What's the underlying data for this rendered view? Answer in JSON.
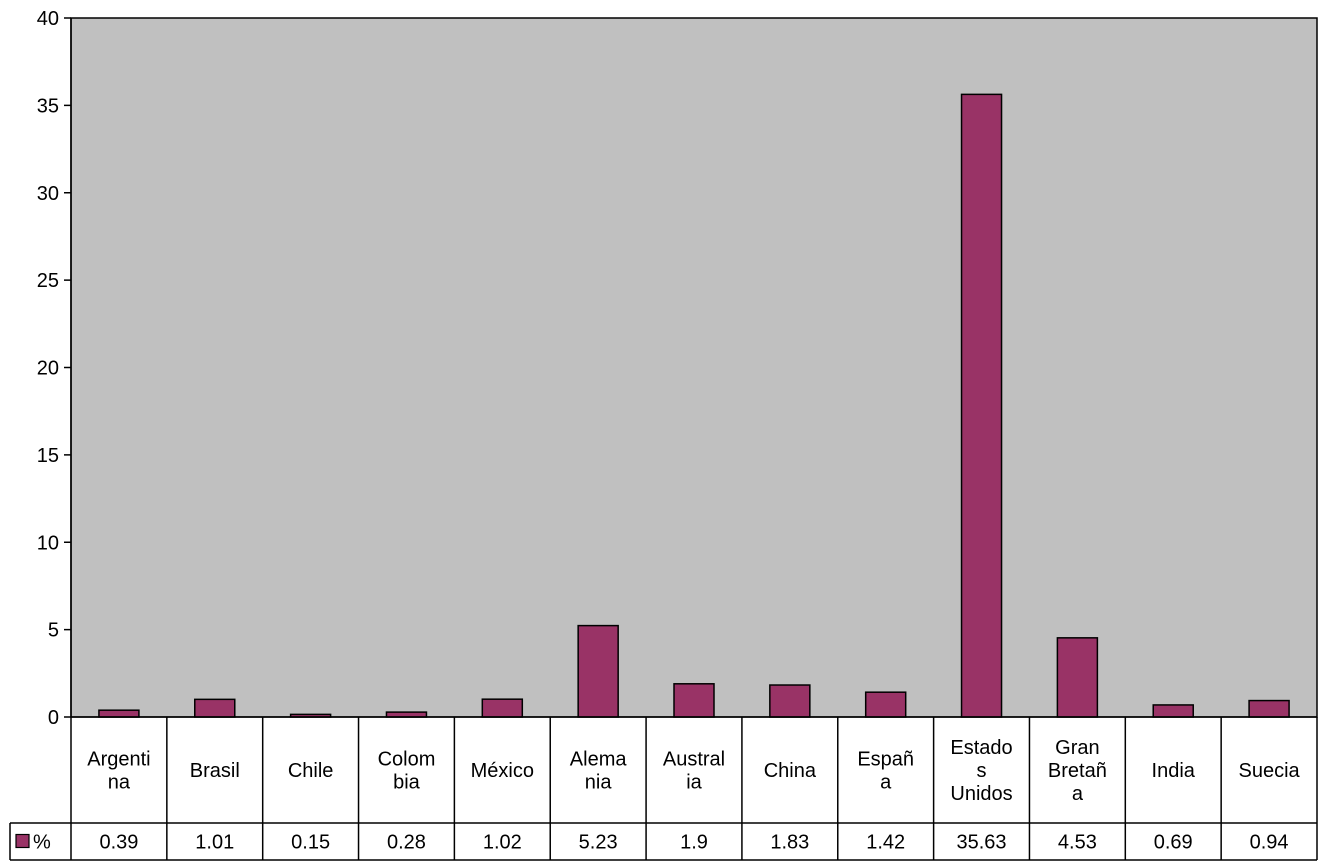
{
  "chart_data": {
    "type": "bar",
    "title": "",
    "xlabel": "",
    "ylabel": "",
    "ylim": [
      0,
      40
    ],
    "yticks": [
      "0",
      "5",
      "10",
      "15",
      "20",
      "25",
      "30",
      "35",
      "40"
    ],
    "grid": false,
    "legend_position": "left of data table",
    "categories": [
      "Argentina",
      "Brasil",
      "Chile",
      "Colombia",
      "México",
      "Alemania",
      "Australia",
      "China",
      "España",
      "Estados Unidos",
      "Gran Bretaña",
      "India",
      "Suecia"
    ],
    "category_label_lines": [
      [
        "Argenti",
        "na"
      ],
      [
        "Brasil"
      ],
      [
        "Chile"
      ],
      [
        "Colom",
        "bia"
      ],
      [
        "México"
      ],
      [
        "Alema",
        "nia"
      ],
      [
        "Austral",
        "ia"
      ],
      [
        "China"
      ],
      [
        "Españ",
        "a"
      ],
      [
        "Estado",
        "s",
        "Unidos"
      ],
      [
        "Gran",
        "Bretañ",
        "a"
      ],
      [
        "India"
      ],
      [
        "Suecia"
      ]
    ],
    "series": [
      {
        "name": "%",
        "values": [
          0.39,
          1.01,
          0.15,
          0.28,
          1.02,
          5.23,
          1.9,
          1.83,
          1.42,
          35.63,
          4.53,
          0.69,
          0.94
        ],
        "value_labels": [
          "0.39",
          "1.01",
          "0.15",
          "0.28",
          "1.02",
          "5.23",
          "1.9",
          "1.83",
          "1.42",
          "35.63",
          "4.53",
          "0.69",
          "0.94"
        ]
      }
    ],
    "colors": {
      "plot_background": "#c0c0c0",
      "bar_fill": "#993366",
      "outline": "#000000"
    }
  }
}
